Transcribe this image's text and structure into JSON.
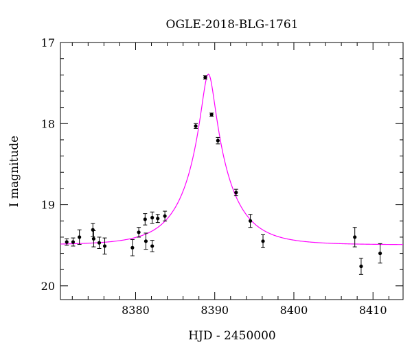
{
  "chart_data": {
    "type": "scatter",
    "title": "OGLE-2018-BLG-1761",
    "xlabel": "HJD - 2450000",
    "ylabel": "I magnitude",
    "xlim": [
      8370.5,
      8413.8
    ],
    "ylim": [
      17.0,
      20.17
    ],
    "y_inverted": true,
    "x_major_ticks": [
      8380,
      8390,
      8400,
      8410
    ],
    "x_minor_step": 2,
    "y_major_ticks": [
      17,
      18,
      19,
      20
    ],
    "y_minor_step": 0.2,
    "x_tick_labels": [
      "8380",
      "8390",
      "8400",
      "8410"
    ],
    "y_tick_labels": [
      "17",
      "18",
      "19",
      "20"
    ],
    "grid": false,
    "series": [
      {
        "type": "scatter",
        "color": "#000000",
        "points": [
          {
            "x": 8371.3,
            "y": 19.46,
            "err": 0.04
          },
          {
            "x": 8372.1,
            "y": 19.46,
            "err": 0.05
          },
          {
            "x": 8372.9,
            "y": 19.4,
            "err": 0.09
          },
          {
            "x": 8374.6,
            "y": 19.31,
            "err": 0.08
          },
          {
            "x": 8374.7,
            "y": 19.42,
            "err": 0.1
          },
          {
            "x": 8375.4,
            "y": 19.47,
            "err": 0.07
          },
          {
            "x": 8376.1,
            "y": 19.51,
            "err": 0.1
          },
          {
            "x": 8379.6,
            "y": 19.53,
            "err": 0.1
          },
          {
            "x": 8380.4,
            "y": 19.34,
            "err": 0.06
          },
          {
            "x": 8381.2,
            "y": 19.18,
            "err": 0.07
          },
          {
            "x": 8381.3,
            "y": 19.45,
            "err": 0.1
          },
          {
            "x": 8382.1,
            "y": 19.16,
            "err": 0.07
          },
          {
            "x": 8382.1,
            "y": 19.51,
            "err": 0.07
          },
          {
            "x": 8382.8,
            "y": 19.17,
            "err": 0.05
          },
          {
            "x": 8383.7,
            "y": 19.14,
            "err": 0.06
          },
          {
            "x": 8387.6,
            "y": 18.03,
            "err": 0.03
          },
          {
            "x": 8388.8,
            "y": 17.43,
            "err": 0.02
          },
          {
            "x": 8389.6,
            "y": 17.89,
            "err": 0.02
          },
          {
            "x": 8390.4,
            "y": 18.21,
            "err": 0.04
          },
          {
            "x": 8392.7,
            "y": 18.85,
            "err": 0.04
          },
          {
            "x": 8394.5,
            "y": 19.2,
            "err": 0.08
          },
          {
            "x": 8396.1,
            "y": 19.45,
            "err": 0.08
          },
          {
            "x": 8407.7,
            "y": 19.4,
            "err": 0.12
          },
          {
            "x": 8408.5,
            "y": 19.76,
            "err": 0.1
          },
          {
            "x": 8410.9,
            "y": 19.6,
            "err": 0.12
          }
        ]
      },
      {
        "type": "line",
        "color": "#ff00ff",
        "model": "pspl",
        "t0": 8389.2,
        "tE": 5.1,
        "u0": 0.155,
        "baseline_mag": 19.495,
        "peak_mag": 17.39
      }
    ]
  }
}
